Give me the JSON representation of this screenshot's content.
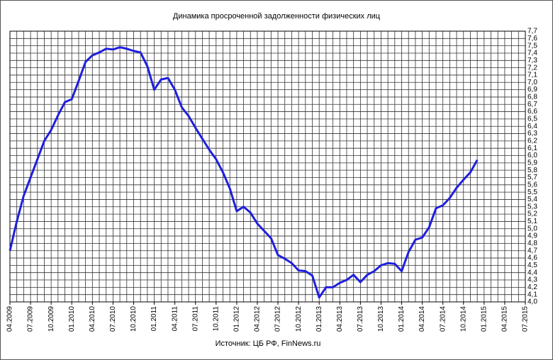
{
  "chart_data": {
    "type": "line",
    "title": "Динамика просроченной задолженности физических лиц",
    "source": "Источник: ЦБ РФ, FinNews.ru",
    "categories": [
      "04.2009",
      null,
      null,
      "07.2009",
      null,
      null,
      "10.2009",
      null,
      null,
      "01.2010",
      null,
      null,
      "04.2010",
      null,
      null,
      "07.2010",
      null,
      null,
      "10.2010",
      null,
      null,
      "01.2011",
      null,
      null,
      "04.2011",
      null,
      null,
      "07.2011",
      null,
      null,
      "10.2011",
      null,
      null,
      "01.2012",
      null,
      null,
      "04.2012",
      null,
      null,
      "07.2012",
      null,
      null,
      "10.2012",
      null,
      null,
      "01.2013",
      null,
      null,
      "04.2013",
      null,
      null,
      "07.2013",
      null,
      null,
      "10.2013",
      null,
      null,
      "01.2014",
      null,
      null,
      "04.2014",
      null,
      null,
      "07.2014",
      null,
      null,
      "10.2014",
      null,
      null,
      "01.2015",
      null,
      null,
      "04.2015",
      null,
      null,
      "07.2015"
    ],
    "series": [
      {
        "color": "#1f1fdd",
        "values": [
          4.7,
          5.1,
          5.45,
          5.7,
          5.95,
          6.2,
          6.35,
          6.55,
          6.73,
          6.77,
          7.02,
          7.28,
          7.37,
          7.41,
          7.46,
          7.45,
          7.48,
          7.46,
          7.43,
          7.41,
          7.22,
          6.9,
          7.04,
          7.06,
          6.9,
          6.66,
          6.54,
          6.38,
          6.23,
          6.08,
          5.95,
          5.77,
          5.55,
          5.24,
          5.3,
          5.22,
          5.07,
          4.97,
          4.87,
          4.64,
          4.59,
          4.53,
          4.43,
          4.42,
          4.36,
          4.06,
          4.2,
          4.2,
          4.26,
          4.3,
          4.37,
          4.27,
          4.37,
          4.42,
          4.5,
          4.53,
          4.52,
          4.42,
          4.68,
          4.85,
          4.88,
          5.02,
          5.28,
          5.32,
          5.42,
          5.56,
          5.67,
          5.77,
          5.94,
          null,
          null,
          null,
          null,
          null,
          null,
          null
        ]
      }
    ],
    "ylim": [
      4,
      7.7
    ],
    "yticks": [
      {
        "value": 4,
        "label": "4,0"
      },
      {
        "value": 4.1,
        "label": "4,1"
      },
      {
        "value": 4.2,
        "label": "4,2"
      },
      {
        "value": 4.3,
        "label": "4,3"
      },
      {
        "value": 4.4,
        "label": "4,4"
      },
      {
        "value": 4.5,
        "label": "4,5"
      },
      {
        "value": 4.6,
        "label": "4,6"
      },
      {
        "value": 4.7,
        "label": "4,7"
      },
      {
        "value": 4.8,
        "label": "4,8"
      },
      {
        "value": 4.9,
        "label": "4,9"
      },
      {
        "value": 5,
        "label": "5,0"
      },
      {
        "value": 5.1,
        "label": "5,1"
      },
      {
        "value": 5.2,
        "label": "5,2"
      },
      {
        "value": 5.3,
        "label": "5,3"
      },
      {
        "value": 5.4,
        "label": "5,4"
      },
      {
        "value": 5.5,
        "label": "5,5"
      },
      {
        "value": 5.6,
        "label": "5,6"
      },
      {
        "value": 5.7,
        "label": "5,7"
      },
      {
        "value": 5.8,
        "label": "5,8"
      },
      {
        "value": 5.9,
        "label": "5,9"
      },
      {
        "value": 6,
        "label": "6,0"
      },
      {
        "value": 6.1,
        "label": "6,1"
      },
      {
        "value": 6.2,
        "label": "6,2"
      },
      {
        "value": 6.3,
        "label": "6,3"
      },
      {
        "value": 6.4,
        "label": "6,4"
      },
      {
        "value": 6.5,
        "label": "6,5"
      },
      {
        "value": 6.6,
        "label": "6,6"
      },
      {
        "value": 6.7,
        "label": "6,7"
      },
      {
        "value": 6.8,
        "label": "6,8"
      },
      {
        "value": 6.9,
        "label": "6,9"
      },
      {
        "value": 7,
        "label": "7,0"
      },
      {
        "value": 7.1,
        "label": "7,1"
      },
      {
        "value": 7.2,
        "label": "7,2"
      },
      {
        "value": 7.3,
        "label": "7,3"
      },
      {
        "value": 7.4,
        "label": "7,4"
      },
      {
        "value": 7.5,
        "label": "7,5"
      },
      {
        "value": 7.6,
        "label": "7,6"
      },
      {
        "value": 7.7,
        "label": "7,7"
      }
    ],
    "grid": true
  }
}
